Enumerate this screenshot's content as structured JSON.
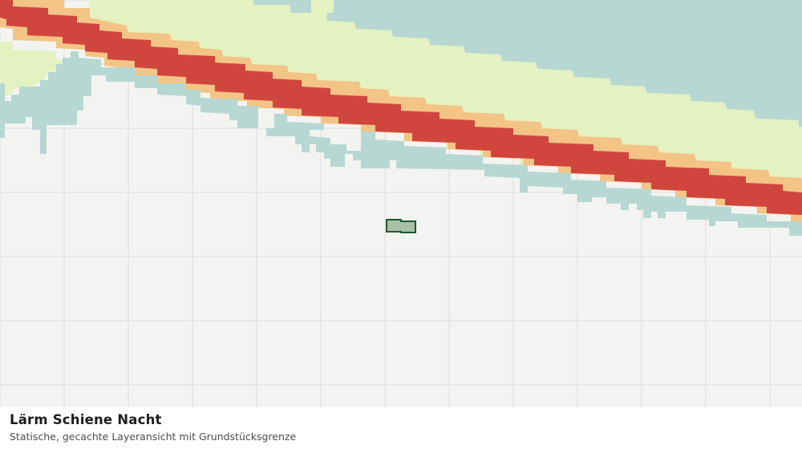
{
  "map": {
    "zone_colors": {
      "background": "#f3f4f1",
      "grid": "#dcdedb",
      "teal": "#b7d7d3",
      "yellow_green": "#e3f2c0",
      "orange": "#f3c485",
      "red": "#d0463f",
      "parcel_fill": "#a9bfaa",
      "parcel_stroke": "#1e5a2f"
    }
  },
  "caption": {
    "title": "Lärm Schiene Nacht",
    "subtitle": "Statische, gecachte Layeransicht mit Grundstücksgrenze"
  }
}
